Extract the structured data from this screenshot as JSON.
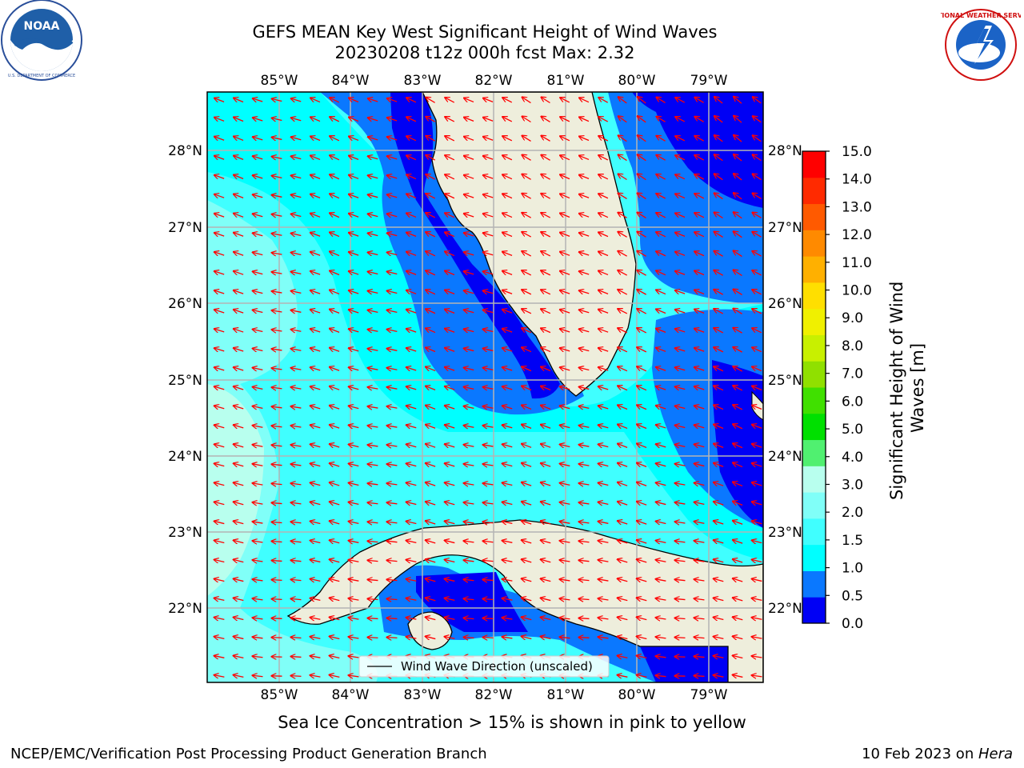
{
  "title_line1": "GEFS MEAN Key West Significant Height of Wind Waves",
  "title_line2": "20230208 t12z 000h fcst   Max: 2.32",
  "subnote": "Sea Ice Concentration > 15% is shown in pink to yellow",
  "footer_left": "NCEP/EMC/Verification Post Processing Product Generation Branch",
  "footer_right_prefix": "10 Feb 2023 on ",
  "footer_right_host": "Hera",
  "legend_label": "Wind Wave Direction (unscaled)",
  "colorbar_label": "Significant Height of Wind Waves [m]",
  "colorbar_ticks": [
    "0.0",
    "0.5",
    "1.0",
    "1.5",
    "2.0",
    "3.0",
    "4.0",
    "5.0",
    "6.0",
    "7.0",
    "8.0",
    "9.0",
    "10.0",
    "11.0",
    "12.0",
    "13.0",
    "14.0",
    "15.0"
  ],
  "colorbar_colors": [
    "#0000f5",
    "#0a78ff",
    "#00ffff",
    "#40ffff",
    "#80fff8",
    "#b8ffee",
    "#50f070",
    "#00e000",
    "#40e000",
    "#90e000",
    "#c8f000",
    "#f0f000",
    "#ffdf00",
    "#ffb000",
    "#ff8a00",
    "#ff5a00",
    "#ff2a00",
    "#ff0000"
  ],
  "lon_labels": [
    "85°W",
    "84°W",
    "83°W",
    "82°W",
    "81°W",
    "80°W",
    "79°W"
  ],
  "lat_labels": [
    "28°N",
    "27°N",
    "26°N",
    "25°N",
    "24°N",
    "23°N",
    "22°N"
  ],
  "logos": {
    "left": "NOAA",
    "right": "NATIONAL WEATHER SERVICE"
  },
  "colors": {
    "land": "#eeeedc",
    "arrow": "#ff0000",
    "grid": "#b4b4b4"
  }
}
